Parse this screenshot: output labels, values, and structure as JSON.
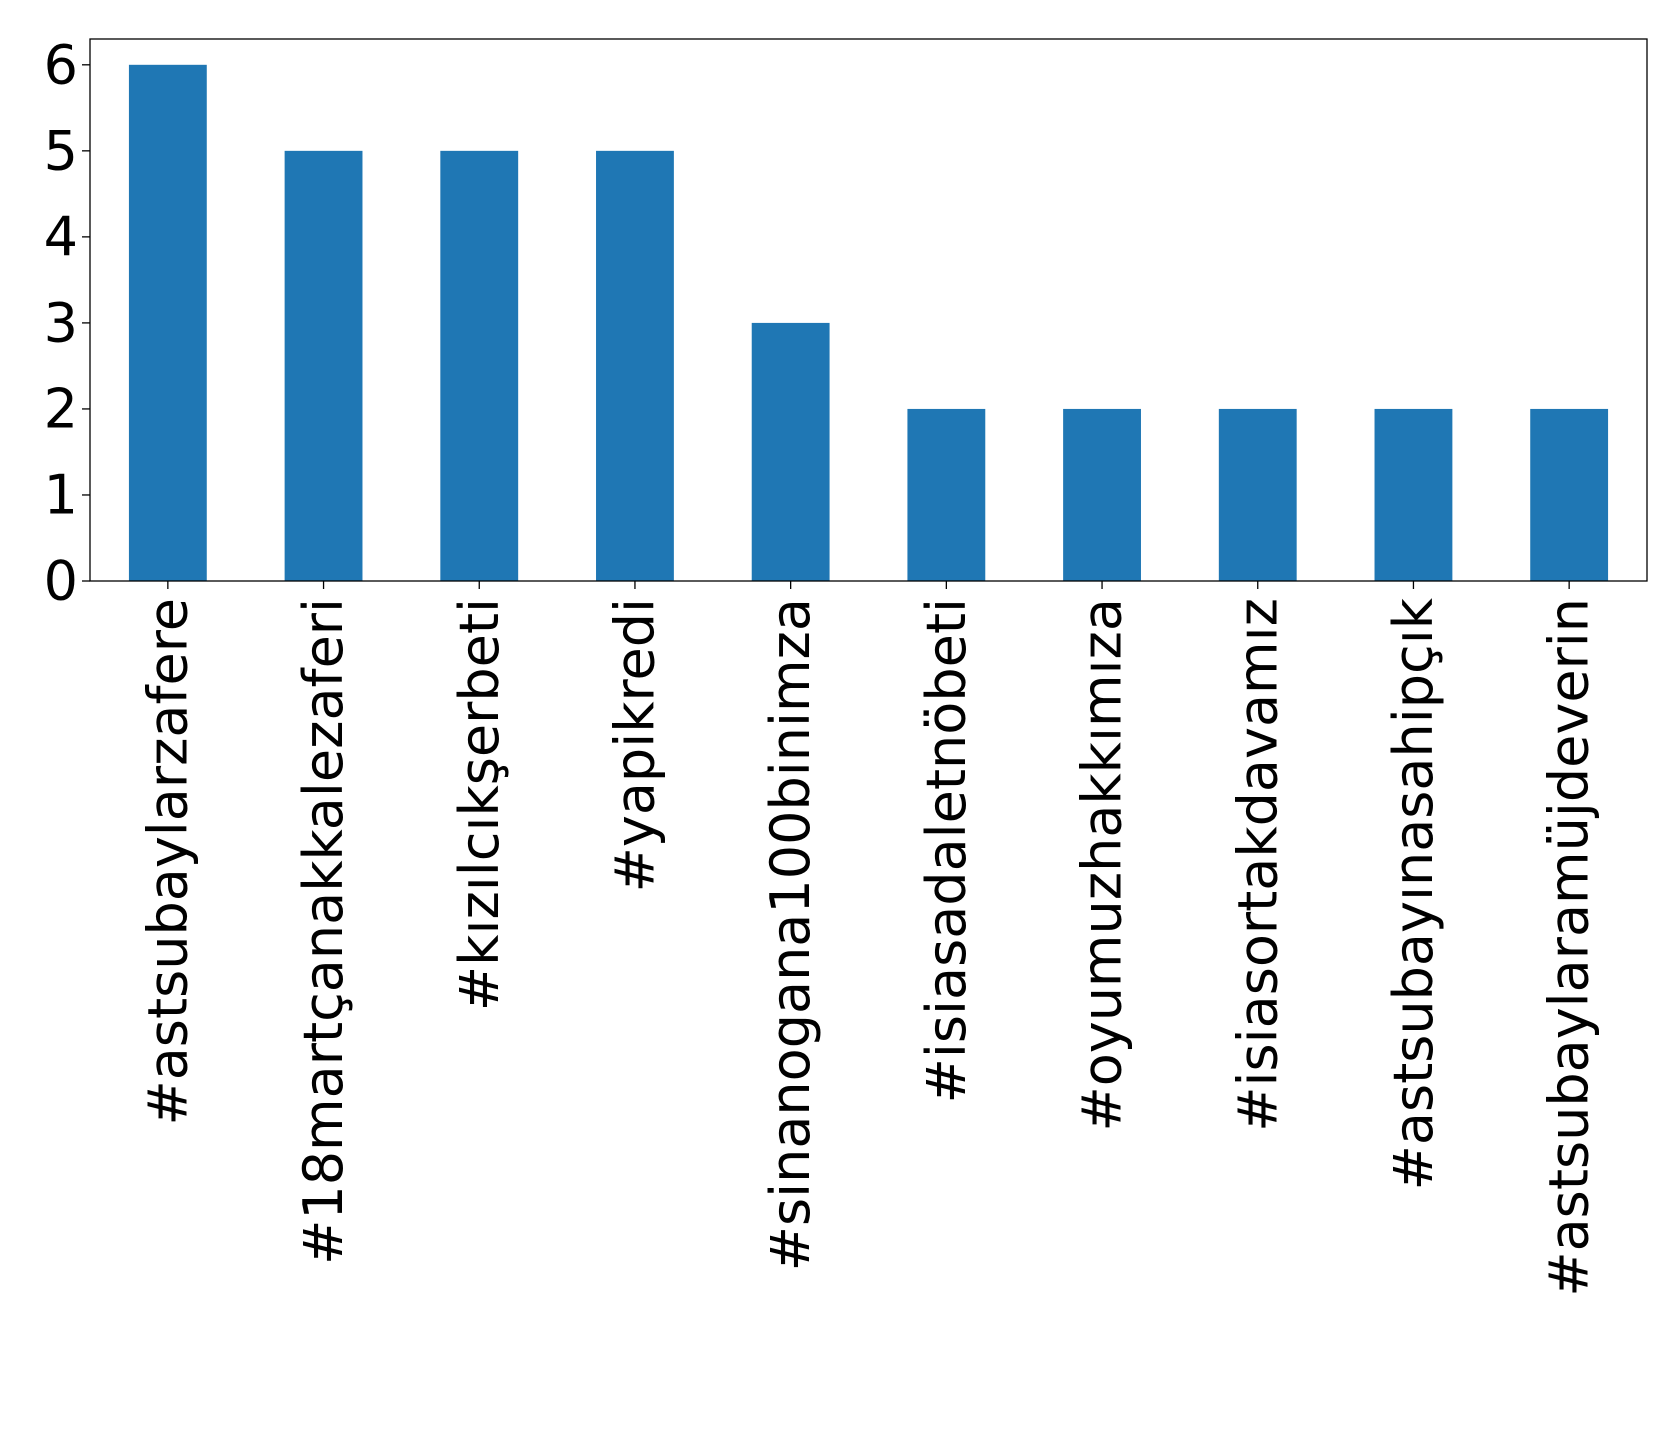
{
  "chart_data": {
    "type": "bar",
    "categories": [
      "#astsubaylarzafere",
      "#18martçanakkalezaferi",
      "#kızılcıkşerbeti",
      "#yapikredi",
      "#sinanogana100binimza",
      "#isiasadaletnöbeti",
      "#oyumuzhakkımıza",
      "#isiasortakdavamız",
      "#astsubayınasahipçık",
      "#astsubaylaramüjdeverin"
    ],
    "values": [
      6,
      5,
      5,
      5,
      3,
      2,
      2,
      2,
      2,
      2
    ],
    "ylim": [
      0,
      6.3
    ],
    "yticks": [
      0,
      1,
      2,
      3,
      4,
      5,
      6
    ],
    "title": "",
    "xlabel": "",
    "ylabel": "",
    "grid": false,
    "colors": {
      "bar": "#1f77b4",
      "axis": "#000000"
    }
  }
}
